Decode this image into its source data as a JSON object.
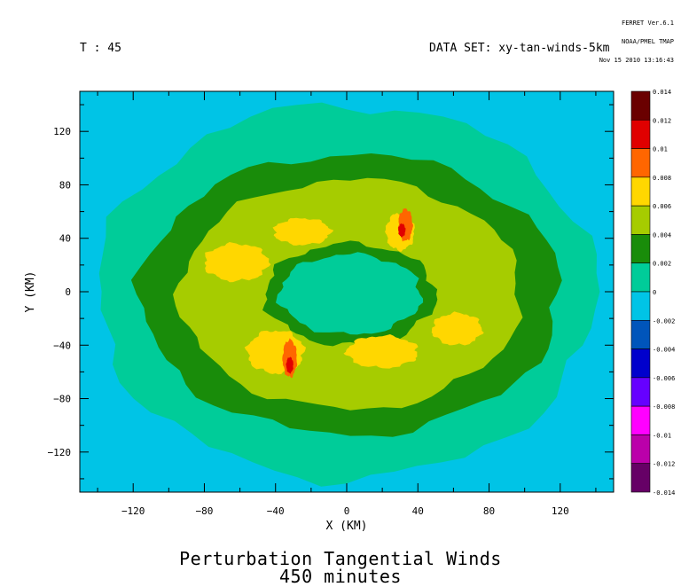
{
  "header": {
    "stamp": [
      "FERRET Ver.6.1",
      "NOAA/PMEL TMAP",
      "Nov 15 2010 13:16:43"
    ],
    "left": "T : 45",
    "right": "DATA SET: xy-tan-winds-5km"
  },
  "title": {
    "line1": "Perturbation Tangential Winds",
    "line2": "450 minutes"
  },
  "chart_data": {
    "type": "heatmap",
    "title": "Perturbation Tangential Winds",
    "subtitle": "450 minutes",
    "xlabel": "X (KM)",
    "ylabel": "Y (KM)",
    "xlim": [
      -150,
      150
    ],
    "ylim": [
      -150,
      150
    ],
    "xticks": [
      -120,
      -80,
      -40,
      0,
      40,
      80,
      120
    ],
    "yticks": [
      120,
      80,
      40,
      0,
      -40,
      -80,
      -120
    ],
    "xtick_labels": [
      "−120",
      "−80",
      "−40",
      "0",
      "40",
      "80",
      "120"
    ],
    "ytick_labels": [
      "120",
      "80",
      "40",
      "0",
      "−40",
      "−80",
      "−120"
    ],
    "colorbar": {
      "labels": [
        "0.014",
        "0.012",
        "0.01",
        "0.008",
        "0.006",
        "0.004",
        "0.002",
        "0",
        "-0.002",
        "-0.004",
        "-0.006",
        "-0.008",
        "-0.01",
        "-0.012",
        "-0.014"
      ],
      "bins": [
        {
          "range": [
            0.012,
            0.014
          ],
          "color": "#6a0000"
        },
        {
          "range": [
            0.01,
            0.012
          ],
          "color": "#e00000"
        },
        {
          "range": [
            0.008,
            0.01
          ],
          "color": "#ff6600"
        },
        {
          "range": [
            0.006,
            0.008
          ],
          "color": "#ffd700"
        },
        {
          "range": [
            0.004,
            0.006
          ],
          "color": "#a6cc00"
        },
        {
          "range": [
            0.002,
            0.004
          ],
          "color": "#198c0a"
        },
        {
          "range": [
            0.0,
            0.002
          ],
          "color": "#00cc99"
        },
        {
          "range": [
            -0.002,
            0.0
          ],
          "color": "#00c4e6"
        },
        {
          "range": [
            -0.004,
            -0.002
          ],
          "color": "#0055bb"
        },
        {
          "range": [
            -0.006,
            -0.004
          ],
          "color": "#0000cc"
        },
        {
          "range": [
            -0.008,
            -0.006
          ],
          "color": "#6600ff"
        },
        {
          "range": [
            -0.01,
            -0.008
          ],
          "color": "#ff00ff"
        },
        {
          "range": [
            -0.012,
            -0.01
          ],
          "color": "#bb00aa"
        },
        {
          "range": [
            -0.014,
            -0.012
          ],
          "color": "#660066"
        }
      ]
    },
    "regions": [
      {
        "level": -0.001,
        "shape": "background"
      },
      {
        "level": 0.001,
        "shape": "disk",
        "center": [
          0,
          0
        ],
        "radius": 140
      },
      {
        "level": 0.003,
        "shape": "ring",
        "center": [
          2,
          -2
        ],
        "outer": [
          118,
          105
        ],
        "inner": [
          40,
          30
        ]
      },
      {
        "level": 0.005,
        "shape": "ring",
        "center": [
          2,
          -2
        ],
        "outer": [
          96,
          86
        ],
        "inner": [
          48,
          38
        ]
      },
      {
        "level": 0.007,
        "shape": "blob",
        "center": [
          -62,
          22
        ],
        "radius": [
          18,
          14
        ]
      },
      {
        "level": 0.007,
        "shape": "blob",
        "center": [
          -40,
          -45
        ],
        "radius": [
          16,
          16
        ]
      },
      {
        "level": 0.007,
        "shape": "blob",
        "center": [
          20,
          -45
        ],
        "radius": [
          20,
          12
        ]
      },
      {
        "level": 0.007,
        "shape": "blob",
        "center": [
          62,
          -28
        ],
        "radius": [
          14,
          12
        ]
      },
      {
        "level": 0.007,
        "shape": "blob",
        "center": [
          -25,
          45
        ],
        "radius": [
          16,
          10
        ]
      },
      {
        "level": 0.007,
        "shape": "blob",
        "center": [
          30,
          45
        ],
        "radius": [
          8,
          14
        ]
      },
      {
        "level": 0.009,
        "shape": "blob",
        "center": [
          -32,
          -50
        ],
        "radius": [
          4,
          14
        ]
      },
      {
        "level": 0.009,
        "shape": "blob",
        "center": [
          33,
          50
        ],
        "radius": [
          4,
          12
        ]
      },
      {
        "level": 0.011,
        "shape": "blob",
        "center": [
          31,
          46
        ],
        "radius": [
          2,
          5
        ]
      },
      {
        "level": 0.011,
        "shape": "blob",
        "center": [
          -32,
          -55
        ],
        "radius": [
          2,
          6
        ]
      }
    ]
  }
}
